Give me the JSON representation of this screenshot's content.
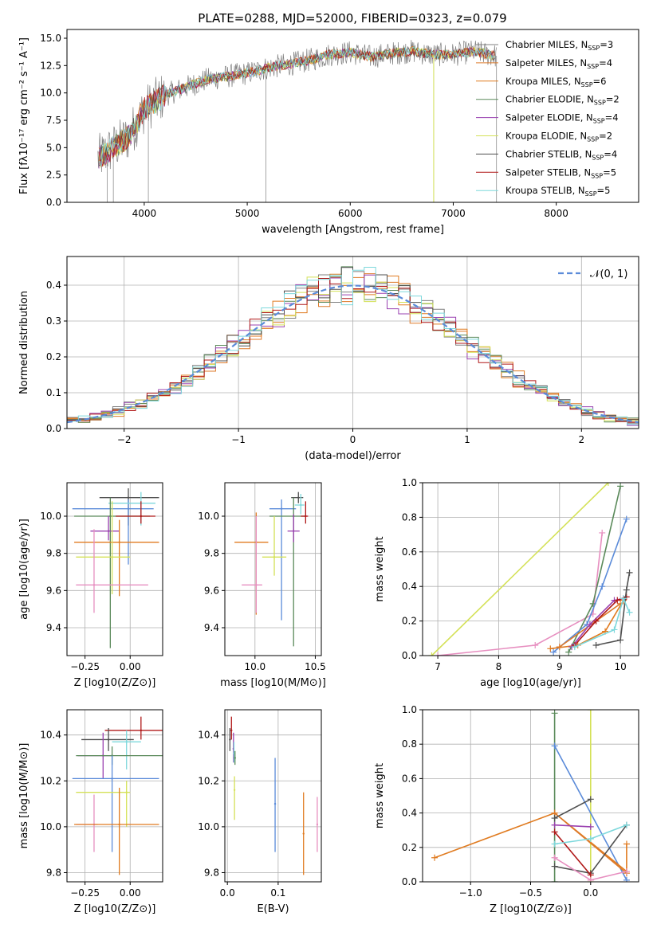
{
  "figure": {
    "title": "PLATE=0288, MJD=52000, FIBERID=0323, z=0.079"
  },
  "model_names": [
    "Chabrier MILES",
    "Salpeter MILES",
    "Kroupa MILES",
    "Chabrier ELODIE",
    "Salpeter ELODIE",
    "Kroupa ELODIE",
    "Chabrier STELIB",
    "Salpeter STELIB",
    "Kroupa STELIB"
  ],
  "model_colors": [
    "#808080",
    "#dd7a2a",
    "#e07b20",
    "#5a8a5a",
    "#9a40b0",
    "#d4e157",
    "#505050",
    "#b01818",
    "#7dd8dc"
  ],
  "chart_data": [
    {
      "id": "spectrum",
      "type": "line",
      "title": "PLATE=0288, MJD=52000, FIBERID=0323, z=0.079",
      "xlabel": "wavelength [Angstrom, rest frame]",
      "ylabel": "Flux [fλ10⁻¹⁷ erg cm⁻² s⁻¹ A⁻¹]",
      "xlim": [
        3250,
        8800
      ],
      "ylim": [
        0,
        15.8
      ],
      "xticks": [
        4000,
        5000,
        6000,
        7000,
        8000
      ],
      "yticks": [
        0.0,
        2.5,
        5.0,
        7.5,
        10.0,
        12.5,
        15.0
      ],
      "grid": false,
      "legend_position": "top-right",
      "legend": [
        {
          "label": "Chabrier MILES",
          "nssp": "3",
          "color": "#808080"
        },
        {
          "label": "Salpeter MILES",
          "nssp": "4",
          "color": "#dd7a2a"
        },
        {
          "label": "Kroupa MILES",
          "nssp": "6",
          "color": "#e07b20"
        },
        {
          "label": "Chabrier ELODIE",
          "nssp": "2",
          "color": "#5a8a5a"
        },
        {
          "label": "Salpeter ELODIE",
          "nssp": "4",
          "color": "#9a40b0"
        },
        {
          "label": "Kroupa ELODIE",
          "nssp": "2",
          "color": "#d4e157"
        },
        {
          "label": "Chabrier STELIB",
          "nssp": "4",
          "color": "#505050"
        },
        {
          "label": "Salpeter STELIB",
          "nssp": "5",
          "color": "#b01818"
        },
        {
          "label": "Kroupa STELIB",
          "nssp": "5",
          "color": "#7dd8dc"
        }
      ],
      "data_envelope": {
        "x": [
          3550,
          3700,
          3850,
          4000,
          4200,
          4400,
          4600,
          4800,
          5000,
          5200,
          5400,
          5600,
          5800,
          6000,
          6200,
          6400,
          6600,
          6800,
          7000,
          7200,
          7400
        ],
        "y": [
          4.0,
          5.0,
          6.0,
          8.5,
          9.8,
          10.5,
          11.2,
          11.5,
          11.8,
          12.3,
          12.6,
          13.0,
          13.5,
          13.7,
          13.3,
          13.6,
          13.8,
          13.5,
          13.5,
          13.8,
          13.4
        ]
      }
    },
    {
      "id": "residuals",
      "type": "line",
      "xlabel": "(data-model)/error",
      "ylabel": "Normed distribution",
      "xlim": [
        -2.5,
        2.5
      ],
      "ylim": [
        0,
        0.48
      ],
      "xticks": [
        -2,
        -1,
        0,
        1,
        2
      ],
      "yticks": [
        0.0,
        0.1,
        0.2,
        0.3,
        0.4
      ],
      "grid": true,
      "legend_position": "top-right",
      "legend": [
        {
          "label": "𝒩(0, 1)",
          "color": "#5b8bd9",
          "style": "dashed"
        }
      ],
      "histogram_bin_width": 0.1
    },
    {
      "id": "age-vs-Z",
      "type": "scatter",
      "xlabel": "Z [log10(Z/Z⊙)]",
      "ylabel": "age  [log10(age/yr)]",
      "xlim": [
        -0.35,
        0.18
      ],
      "ylim": [
        9.25,
        10.18
      ],
      "xticks": [
        -0.25,
        0.0
      ],
      "xtick_labels": [
        "−0.25",
        "0.00"
      ],
      "yticks": [
        9.4,
        9.6,
        9.8,
        10.0
      ],
      "grid": true,
      "points": [
        {
          "x": -0.01,
          "y": 10.1,
          "xerr": [
            0.16,
            0.17
          ],
          "yerr": [
            0.15,
            0.05
          ],
          "color": "#505050"
        },
        {
          "x": -0.01,
          "y": 10.04,
          "xerr": [
            0.31,
            0.14
          ],
          "yerr": [
            0.3,
            0.05
          ],
          "color": "#5b8bd9"
        },
        {
          "x": 0.06,
          "y": 10.07,
          "xerr": [
            0.18,
            0.08
          ],
          "yerr": [
            0.12,
            0.06
          ],
          "color": "#7dd8dc"
        },
        {
          "x": -0.11,
          "y": 10.0,
          "xerr": [
            0.2,
            0.22
          ],
          "yerr": [
            0.71,
            0.1
          ],
          "color": "#5a8a5a"
        },
        {
          "x": -0.12,
          "y": 9.92,
          "xerr": [
            0.1,
            0.06
          ],
          "yerr": [
            0.05,
            0.08
          ],
          "color": "#9a40b0"
        },
        {
          "x": 0.06,
          "y": 10.0,
          "xerr": [
            0.14,
            0.08
          ],
          "yerr": [
            0.04,
            0.08
          ],
          "color": "#b01818"
        },
        {
          "x": -0.06,
          "y": 9.86,
          "xerr": [
            0.25,
            0.22
          ],
          "yerr": [
            0.29,
            0.12
          ],
          "color": "#e07b20"
        },
        {
          "x": -0.1,
          "y": 9.78,
          "xerr": [
            0.2,
            0.1
          ],
          "yerr": [
            0.2,
            0.3
          ],
          "color": "#d4e157"
        },
        {
          "x": -0.2,
          "y": 9.63,
          "xerr": [
            0.1,
            0.3
          ],
          "yerr": [
            0.15,
            0.3
          ],
          "color": "#e78fc0"
        }
      ]
    },
    {
      "id": "age-vs-mass",
      "type": "scatter",
      "xlabel": "mass [log10(M/M⊙)]",
      "ylabel": "",
      "xlim": [
        9.75,
        10.55
      ],
      "ylim": [
        9.25,
        10.18
      ],
      "xticks": [
        10.0,
        10.5
      ],
      "xtick_labels": [
        "10.0",
        "10.5"
      ],
      "yticks": [
        9.4,
        9.6,
        9.8,
        10.0
      ],
      "grid": true,
      "points": [
        {
          "x": 10.36,
          "y": 10.1,
          "xerr": [
            0.06,
            0.04
          ],
          "yerr": [
            0.03,
            0.03
          ],
          "color": "#505050"
        },
        {
          "x": 10.22,
          "y": 10.04,
          "xerr": [
            0.1,
            0.12
          ],
          "yerr": [
            0.6,
            0.05
          ],
          "color": "#5b8bd9"
        },
        {
          "x": 10.38,
          "y": 10.06,
          "xerr": [
            0.05,
            0.03
          ],
          "yerr": [
            0.05,
            0.06
          ],
          "color": "#7dd8dc"
        },
        {
          "x": 10.32,
          "y": 10.0,
          "xerr": [
            0.2,
            0.1
          ],
          "yerr": [
            0.7,
            0.1
          ],
          "color": "#5a8a5a"
        },
        {
          "x": 10.32,
          "y": 9.92,
          "xerr": [
            0.05,
            0.05
          ],
          "yerr": [
            0.06,
            0.09
          ],
          "color": "#9a40b0"
        },
        {
          "x": 10.42,
          "y": 10.0,
          "xerr": [
            0.04,
            0.02
          ],
          "yerr": [
            0.04,
            0.08
          ],
          "color": "#b01818"
        },
        {
          "x": 10.01,
          "y": 9.86,
          "xerr": [
            0.18,
            0.1
          ],
          "yerr": [
            0.39,
            0.16
          ],
          "color": "#e07b20"
        },
        {
          "x": 10.16,
          "y": 9.78,
          "xerr": [
            0.1,
            0.1
          ],
          "yerr": [
            0.1,
            0.22
          ],
          "color": "#d4e157"
        },
        {
          "x": 10.01,
          "y": 9.63,
          "xerr": [
            0.12,
            0.05
          ],
          "yerr": [
            0.15,
            0.37
          ],
          "color": "#e78fc0"
        }
      ]
    },
    {
      "id": "weight-vs-age",
      "type": "line",
      "xlabel": "age  [log10(age/yr)]",
      "ylabel": "mass weight",
      "xlim": [
        6.75,
        10.3
      ],
      "ylim": [
        0,
        1.0
      ],
      "xticks": [
        7,
        8,
        9,
        10
      ],
      "yticks": [
        0.0,
        0.2,
        0.4,
        0.6,
        0.8,
        1.0
      ],
      "grid": true,
      "series": [
        {
          "color": "#d4e157",
          "x": [
            6.9,
            9.8
          ],
          "y": [
            0.0,
            1.0
          ]
        },
        {
          "color": "#e78fc0",
          "x": [
            7.0,
            8.6,
            9.55,
            9.7
          ],
          "y": [
            0.0,
            0.06,
            0.24,
            0.71
          ]
        },
        {
          "color": "#5a8a5a",
          "x": [
            9.15,
            9.55,
            10.0
          ],
          "y": [
            0.02,
            0.3,
            0.98
          ]
        },
        {
          "color": "#5b8bd9",
          "x": [
            8.9,
            9.45,
            9.7,
            10.1
          ],
          "y": [
            0.02,
            0.18,
            0.4,
            0.79
          ]
        },
        {
          "color": "#e07b20",
          "x": [
            8.85,
            9.3,
            9.75,
            10.05
          ],
          "y": [
            0.04,
            0.06,
            0.14,
            0.32
          ]
        },
        {
          "color": "#dd7a2a",
          "x": [
            9.0,
            9.6,
            10.0
          ],
          "y": [
            0.05,
            0.2,
            0.3
          ]
        },
        {
          "color": "#9a40b0",
          "x": [
            9.2,
            9.5,
            9.9,
            10.05
          ],
          "y": [
            0.05,
            0.18,
            0.32,
            0.33
          ]
        },
        {
          "color": "#b01818",
          "x": [
            9.25,
            9.6,
            9.95,
            10.1
          ],
          "y": [
            0.06,
            0.2,
            0.32,
            0.34
          ]
        },
        {
          "color": "#505050",
          "x": [
            9.6,
            10.0,
            10.1,
            10.15
          ],
          "y": [
            0.06,
            0.09,
            0.38,
            0.48
          ]
        },
        {
          "color": "#7dd8dc",
          "x": [
            9.25,
            9.9,
            10.05,
            10.15
          ],
          "y": [
            0.05,
            0.15,
            0.33,
            0.25
          ]
        }
      ]
    },
    {
      "id": "mass-vs-Z",
      "type": "scatter",
      "xlabel": "Z [log10(Z/Z⊙)]",
      "ylabel": "mass [log10(M/M⊙)]",
      "xlim": [
        -0.35,
        0.18
      ],
      "ylim": [
        9.76,
        10.51
      ],
      "xticks": [
        -0.25,
        0.0
      ],
      "xtick_labels": [
        "−0.25",
        "0.00"
      ],
      "yticks": [
        9.8,
        10.0,
        10.2,
        10.4
      ],
      "grid": true,
      "points": [
        {
          "x": 0.06,
          "y": 10.42,
          "xerr": [
            0.2,
            0.12
          ],
          "yerr": [
            0.04,
            0.06
          ],
          "color": "#b01818"
        },
        {
          "x": -0.12,
          "y": 10.38,
          "xerr": [
            0.15,
            0.14
          ],
          "yerr": [
            0.05,
            0.05
          ],
          "color": "#505050"
        },
        {
          "x": -0.02,
          "y": 10.37,
          "xerr": [
            0.08,
            0.08
          ],
          "yerr": [
            0.12,
            0.05
          ],
          "color": "#7dd8dc"
        },
        {
          "x": -0.15,
          "y": 10.31,
          "xerr": [
            0.14,
            0.05
          ],
          "yerr": [
            0.1,
            0.1
          ],
          "color": "#9a40b0"
        },
        {
          "x": -0.1,
          "y": 10.31,
          "xerr": [
            0.2,
            0.28
          ],
          "yerr": [
            0.04,
            0.04
          ],
          "color": "#5a8a5a"
        },
        {
          "x": -0.1,
          "y": 10.21,
          "xerr": [
            0.22,
            0.26
          ],
          "yerr": [
            0.32,
            0.1
          ],
          "color": "#5b8bd9"
        },
        {
          "x": -0.02,
          "y": 10.15,
          "xerr": [
            0.28,
            0.02
          ],
          "yerr": [
            0.15,
            0.05
          ],
          "color": "#d4e157"
        },
        {
          "x": -0.2,
          "y": 10.01,
          "xerr": [
            0.1,
            0.02
          ],
          "yerr": [
            0.12,
            0.13
          ],
          "color": "#e78fc0"
        },
        {
          "x": -0.06,
          "y": 10.01,
          "xerr": [
            0.25,
            0.22
          ],
          "yerr": [
            0.22,
            0.16
          ],
          "color": "#e07b20"
        }
      ]
    },
    {
      "id": "mass-vs-EBV",
      "type": "scatter",
      "xlabel": "E(B-V)",
      "ylabel": "",
      "xlim": [
        -0.005,
        0.185
      ],
      "ylim": [
        9.76,
        10.51
      ],
      "xticks": [
        0.0,
        0.1
      ],
      "xtick_labels": [
        "0.0",
        "0.1"
      ],
      "yticks": [
        9.8,
        10.0,
        10.2,
        10.4
      ],
      "grid": true,
      "points": [
        {
          "x": 0.005,
          "y": 10.38,
          "yerr": [
            0.05,
            0.05
          ],
          "color": "#505050"
        },
        {
          "x": 0.008,
          "y": 10.42,
          "yerr": [
            0.04,
            0.06
          ],
          "color": "#b01818"
        },
        {
          "x": 0.012,
          "y": 10.34,
          "yerr": [
            0.06,
            0.07
          ],
          "color": "#9a40b0"
        },
        {
          "x": 0.013,
          "y": 10.32,
          "yerr": [
            0.04,
            0.05
          ],
          "color": "#7dd8dc"
        },
        {
          "x": 0.014,
          "y": 10.16,
          "yerr": [
            0.13,
            0.06
          ],
          "color": "#d4e157"
        },
        {
          "x": 0.015,
          "y": 10.3,
          "yerr": [
            0.03,
            0.03
          ],
          "color": "#5a8a5a"
        },
        {
          "x": 0.094,
          "y": 10.1,
          "yerr": [
            0.21,
            0.2
          ],
          "color": "#5b8bd9"
        },
        {
          "x": 0.15,
          "y": 9.97,
          "yerr": [
            0.18,
            0.18
          ],
          "color": "#e07b20"
        },
        {
          "x": 0.177,
          "y": 10.01,
          "yerr": [
            0.12,
            0.12
          ],
          "color": "#e78fc0"
        }
      ]
    },
    {
      "id": "weight-vs-Z",
      "type": "line",
      "xlabel": "Z [log10(Z/Z⊙)]",
      "ylabel": "mass weight",
      "xlim": [
        -1.4,
        0.4
      ],
      "ylim": [
        0,
        1.0
      ],
      "xticks": [
        -1.0,
        -0.5,
        0.0
      ],
      "xtick_labels": [
        "−1.0",
        "−0.5",
        "0.0"
      ],
      "yticks": [
        0.0,
        0.2,
        0.4,
        0.6,
        0.8,
        1.0
      ],
      "grid": true,
      "series": [
        {
          "color": "#d4e157",
          "x": [
            0.0,
            0.0
          ],
          "y": [
            0.0,
            1.0
          ]
        },
        {
          "color": "#5a8a5a",
          "x": [
            -0.3,
            -0.3
          ],
          "y": [
            0.0,
            0.98
          ]
        },
        {
          "color": "#5b8bd9",
          "x": [
            -0.3,
            0.3
          ],
          "y": [
            0.79,
            0.01
          ]
        },
        {
          "color": "#e07b20",
          "x": [
            -1.3,
            -0.3,
            0.3,
            0.3
          ],
          "y": [
            0.14,
            0.4,
            0.06,
            0.22
          ]
        },
        {
          "color": "#dd7a2a",
          "x": [
            -0.3,
            0.3
          ],
          "y": [
            0.4,
            0.05
          ]
        },
        {
          "color": "#505050",
          "x": [
            -0.3,
            0.0,
            0.3
          ],
          "y": [
            0.09,
            0.05,
            0.33
          ]
        },
        {
          "color": "#505050",
          "x": [
            -0.3,
            0.0
          ],
          "y": [
            0.37,
            0.48
          ]
        },
        {
          "color": "#9a40b0",
          "x": [
            -0.3,
            0.0
          ],
          "y": [
            0.33,
            0.32
          ]
        },
        {
          "color": "#b01818",
          "x": [
            -0.3,
            0.0
          ],
          "y": [
            0.29,
            0.04
          ]
        },
        {
          "color": "#7dd8dc",
          "x": [
            -0.3,
            0.0,
            0.3
          ],
          "y": [
            0.22,
            0.25,
            0.33
          ]
        },
        {
          "color": "#e78fc0",
          "x": [
            -0.3,
            0.0,
            0.3
          ],
          "y": [
            0.14,
            0.01,
            0.06
          ]
        }
      ]
    }
  ]
}
